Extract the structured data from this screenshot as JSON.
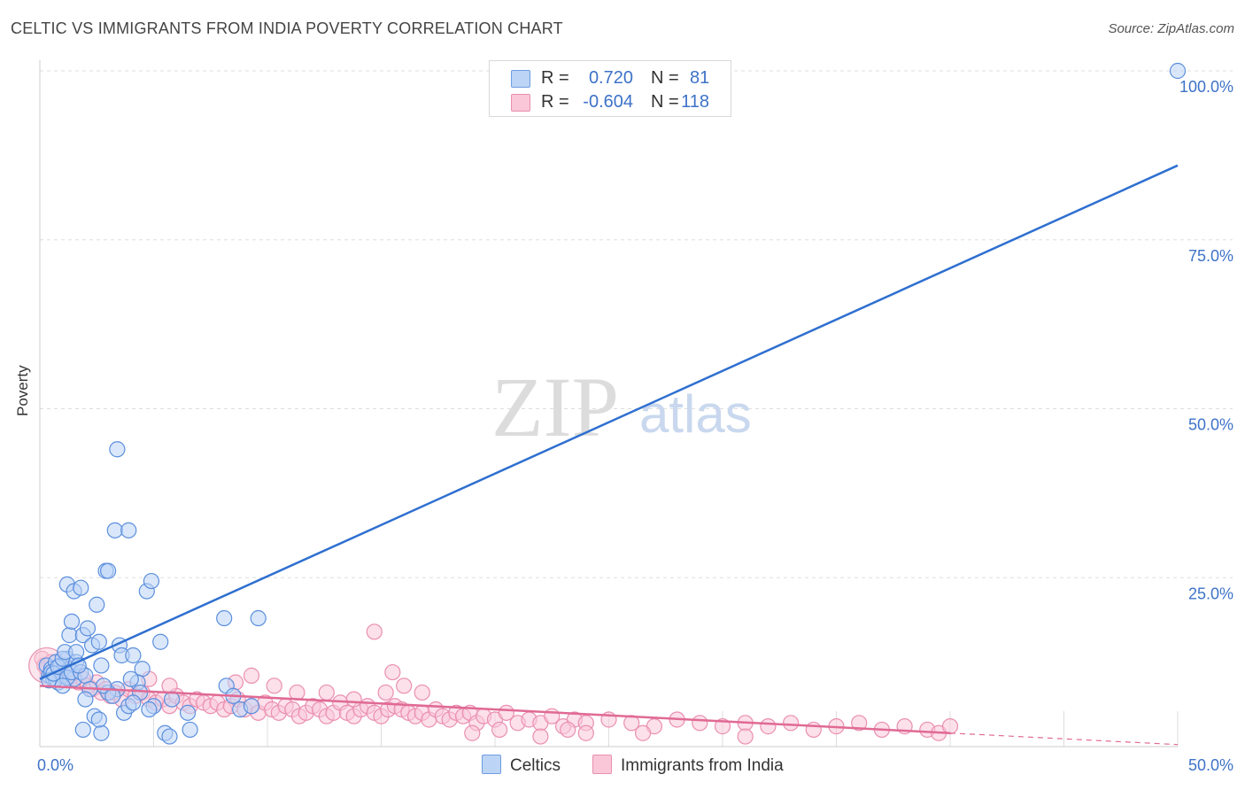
{
  "header": {
    "title": "CELTIC VS IMMIGRANTS FROM INDIA POVERTY CORRELATION CHART",
    "source": "Source: ZipAtlas.com"
  },
  "watermark": {
    "zip": "ZIP",
    "atlas": "atlas"
  },
  "stats": [
    {
      "r_label": "R =",
      "r_value": "0.720",
      "n_label": "N =",
      "n_value": "81",
      "color": "#6d9de0"
    },
    {
      "r_label": "R =",
      "r_value": "-0.604",
      "n_label": "N =",
      "n_value": "118",
      "color": "#ea8fb0"
    }
  ],
  "legend": {
    "celtics": "Celtics",
    "india": "Immigrants from India"
  },
  "colors": {
    "celtic_fill": "#bcd4f5",
    "celtic_stroke": "#5b8fdd",
    "celtic_line": "#2e6fd0",
    "india_fill": "#f9c7d8",
    "india_stroke": "#ea8fb0",
    "india_line": "#e06a94",
    "tick_text": "#3d72c8",
    "grid": "#dddddd"
  },
  "chart_data": {
    "type": "scatter",
    "title": "CELTIC VS IMMIGRANTS FROM INDIA POVERTY CORRELATION CHART",
    "xlabel": "",
    "ylabel": "Poverty",
    "xlim": [
      0,
      50
    ],
    "ylim": [
      0,
      100
    ],
    "x_tick_labels": [
      {
        "value": 0,
        "label": "0.0%"
      },
      {
        "value": 50,
        "label": "50.0%"
      }
    ],
    "y_tick_labels": [
      {
        "value": 25,
        "label": "25.0%"
      },
      {
        "value": 50,
        "label": "50.0%"
      },
      {
        "value": 75,
        "label": "75.0%"
      },
      {
        "value": 100,
        "label": "100.0%"
      }
    ],
    "series": [
      {
        "name": "Celtics",
        "r": 0.72,
        "n": 81,
        "trend": {
          "x0": 0,
          "y0": 10.0,
          "x1": 50,
          "y1": 86.0
        },
        "points": [
          [
            0.3,
            12.0
          ],
          [
            0.4,
            10.5
          ],
          [
            0.5,
            11.5
          ],
          [
            0.6,
            10.0
          ],
          [
            0.7,
            12.5
          ],
          [
            0.8,
            9.5
          ],
          [
            0.9,
            11.0
          ],
          [
            1.0,
            10.5
          ],
          [
            1.1,
            12.0
          ],
          [
            1.2,
            13.0
          ],
          [
            0.5,
            11.0
          ],
          [
            0.7,
            10.0
          ],
          [
            0.9,
            12.0
          ],
          [
            1.3,
            11.5
          ],
          [
            1.5,
            10.0
          ],
          [
            0.4,
            9.8
          ],
          [
            0.6,
            10.8
          ],
          [
            0.8,
            11.8
          ],
          [
            1.0,
            13.0
          ],
          [
            1.2,
            10.2
          ],
          [
            1.4,
            11.0
          ],
          [
            1.6,
            12.5
          ],
          [
            1.8,
            11.0
          ],
          [
            2.0,
            10.5
          ],
          [
            1.1,
            14.0
          ],
          [
            1.3,
            16.5
          ],
          [
            1.4,
            18.5
          ],
          [
            1.2,
            24.0
          ],
          [
            1.5,
            23.0
          ],
          [
            1.8,
            23.5
          ],
          [
            1.6,
            14.0
          ],
          [
            1.9,
            16.5
          ],
          [
            2.1,
            17.5
          ],
          [
            2.3,
            15.0
          ],
          [
            2.5,
            21.0
          ],
          [
            2.6,
            15.5
          ],
          [
            2.7,
            12.0
          ],
          [
            2.9,
            26.0
          ],
          [
            3.0,
            26.0
          ],
          [
            3.3,
            32.0
          ],
          [
            3.5,
            15.0
          ],
          [
            3.6,
            13.5
          ],
          [
            3.9,
            32.0
          ],
          [
            4.1,
            13.5
          ],
          [
            4.5,
            11.5
          ],
          [
            4.7,
            23.0
          ],
          [
            4.9,
            24.5
          ],
          [
            5.3,
            15.5
          ],
          [
            5.0,
            6.0
          ],
          [
            5.5,
            2.0
          ],
          [
            5.7,
            1.5
          ],
          [
            4.3,
            9.5
          ],
          [
            4.0,
            10.0
          ],
          [
            3.4,
            8.5
          ],
          [
            3.0,
            8.0
          ],
          [
            2.8,
            9.0
          ],
          [
            2.2,
            8.5
          ],
          [
            2.0,
            7.0
          ],
          [
            2.4,
            4.5
          ],
          [
            2.7,
            2.0
          ],
          [
            3.2,
            7.5
          ],
          [
            3.7,
            5.0
          ],
          [
            1.9,
            2.5
          ],
          [
            2.6,
            4.0
          ],
          [
            3.9,
            6.0
          ],
          [
            4.4,
            8.0
          ],
          [
            4.8,
            5.5
          ],
          [
            5.8,
            7.0
          ],
          [
            6.5,
            5.0
          ],
          [
            8.2,
            9.0
          ],
          [
            8.5,
            7.5
          ],
          [
            8.8,
            5.5
          ],
          [
            9.3,
            6.0
          ],
          [
            8.1,
            19.0
          ],
          [
            9.6,
            19.0
          ],
          [
            6.6,
            2.5
          ],
          [
            4.1,
            6.5
          ],
          [
            3.4,
            44.0
          ],
          [
            1.7,
            12.0
          ],
          [
            1.0,
            9.0
          ],
          [
            50.0,
            100.0
          ]
        ]
      },
      {
        "name": "Immigrants from India",
        "r": -0.604,
        "n": 118,
        "trend": {
          "x0": 0,
          "y0": 9.0,
          "x1": 40,
          "y1": 2.0
        },
        "trend_dashed": {
          "x0": 40,
          "y0": 2.0,
          "x1": 50,
          "y1": 0.3
        },
        "points": [
          [
            0.1,
            13.0
          ],
          [
            0.2,
            12.0
          ],
          [
            0.3,
            11.5
          ],
          [
            0.5,
            12.5
          ],
          [
            0.7,
            11.0
          ],
          [
            0.9,
            10.5
          ],
          [
            1.1,
            12.0
          ],
          [
            1.3,
            10.0
          ],
          [
            1.5,
            11.0
          ],
          [
            1.7,
            9.5
          ],
          [
            1.9,
            10.0
          ],
          [
            2.1,
            9.0
          ],
          [
            2.3,
            8.5
          ],
          [
            2.5,
            9.5
          ],
          [
            2.7,
            8.0
          ],
          [
            2.9,
            8.5
          ],
          [
            3.1,
            7.5
          ],
          [
            3.3,
            8.0
          ],
          [
            3.6,
            7.0
          ],
          [
            3.9,
            8.5
          ],
          [
            4.2,
            7.5
          ],
          [
            4.5,
            8.0
          ],
          [
            4.8,
            7.0
          ],
          [
            5.1,
            6.5
          ],
          [
            5.4,
            7.0
          ],
          [
            5.7,
            6.0
          ],
          [
            6.0,
            7.5
          ],
          [
            6.3,
            6.5
          ],
          [
            6.6,
            6.0
          ],
          [
            6.9,
            7.0
          ],
          [
            7.2,
            6.5
          ],
          [
            7.5,
            6.0
          ],
          [
            7.8,
            6.5
          ],
          [
            8.1,
            5.5
          ],
          [
            8.4,
            6.0
          ],
          [
            8.7,
            7.0
          ],
          [
            9.0,
            5.5
          ],
          [
            9.3,
            6.0
          ],
          [
            9.6,
            5.0
          ],
          [
            9.9,
            6.5
          ],
          [
            10.2,
            5.5
          ],
          [
            10.5,
            5.0
          ],
          [
            10.8,
            6.0
          ],
          [
            11.1,
            5.5
          ],
          [
            11.4,
            4.5
          ],
          [
            11.7,
            5.0
          ],
          [
            12.0,
            6.0
          ],
          [
            12.3,
            5.5
          ],
          [
            12.6,
            4.5
          ],
          [
            12.9,
            5.0
          ],
          [
            13.2,
            6.5
          ],
          [
            13.5,
            5.0
          ],
          [
            13.8,
            4.5
          ],
          [
            14.1,
            5.5
          ],
          [
            14.4,
            6.0
          ],
          [
            14.7,
            5.0
          ],
          [
            15.0,
            4.5
          ],
          [
            15.3,
            5.5
          ],
          [
            15.6,
            6.0
          ],
          [
            15.9,
            5.5
          ],
          [
            16.2,
            5.0
          ],
          [
            16.5,
            4.5
          ],
          [
            16.8,
            5.0
          ],
          [
            17.1,
            4.0
          ],
          [
            17.4,
            5.5
          ],
          [
            17.7,
            4.5
          ],
          [
            18.0,
            4.0
          ],
          [
            18.3,
            5.0
          ],
          [
            18.6,
            4.5
          ],
          [
            18.9,
            5.0
          ],
          [
            19.2,
            3.5
          ],
          [
            19.5,
            4.5
          ],
          [
            20.0,
            4.0
          ],
          [
            20.5,
            5.0
          ],
          [
            21.0,
            3.5
          ],
          [
            21.5,
            4.0
          ],
          [
            22.0,
            3.5
          ],
          [
            22.5,
            4.5
          ],
          [
            23.0,
            3.0
          ],
          [
            23.5,
            4.0
          ],
          [
            24.0,
            3.5
          ],
          [
            25.0,
            4.0
          ],
          [
            26.0,
            3.5
          ],
          [
            27.0,
            3.0
          ],
          [
            28.0,
            4.0
          ],
          [
            29.0,
            3.5
          ],
          [
            30.0,
            3.0
          ],
          [
            31.0,
            3.5
          ],
          [
            32.0,
            3.0
          ],
          [
            33.0,
            3.5
          ],
          [
            34.0,
            2.5
          ],
          [
            35.0,
            3.0
          ],
          [
            36.0,
            3.5
          ],
          [
            37.0,
            2.5
          ],
          [
            38.0,
            3.0
          ],
          [
            39.0,
            2.5
          ],
          [
            39.5,
            2.0
          ],
          [
            40.0,
            3.0
          ],
          [
            4.8,
            10.0
          ],
          [
            5.7,
            9.0
          ],
          [
            8.6,
            9.5
          ],
          [
            9.3,
            10.5
          ],
          [
            10.3,
            9.0
          ],
          [
            11.3,
            8.0
          ],
          [
            12.6,
            8.0
          ],
          [
            13.8,
            7.0
          ],
          [
            15.2,
            8.0
          ],
          [
            15.5,
            11.0
          ],
          [
            16.0,
            9.0
          ],
          [
            16.8,
            8.0
          ],
          [
            19.0,
            2.0
          ],
          [
            20.2,
            2.5
          ],
          [
            22.0,
            1.5
          ],
          [
            23.2,
            2.5
          ],
          [
            24.0,
            2.0
          ],
          [
            26.5,
            2.0
          ],
          [
            31.0,
            1.5
          ],
          [
            14.7,
            17.0
          ]
        ]
      }
    ]
  }
}
